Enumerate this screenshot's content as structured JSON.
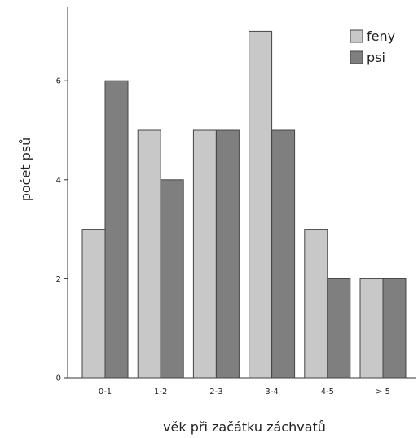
{
  "chart_data": {
    "type": "bar",
    "title": "",
    "xlabel": "věk při začátku záchvatů",
    "ylabel": "počet psů",
    "categories": [
      "0-1",
      "1-2",
      "2-3",
      "3-4",
      "4-5",
      "> 5"
    ],
    "series": [
      {
        "name": "feny",
        "color": "#c8c8c8",
        "values": [
          3,
          5,
          5,
          7,
          3,
          2
        ]
      },
      {
        "name": "psi",
        "color": "#7f7f7f",
        "values": [
          6,
          4,
          5,
          5,
          2,
          2
        ]
      }
    ],
    "ylim": [
      0,
      7.5
    ],
    "yticks": [
      0,
      2,
      4,
      6
    ],
    "grid": false,
    "legend": "top-right"
  }
}
